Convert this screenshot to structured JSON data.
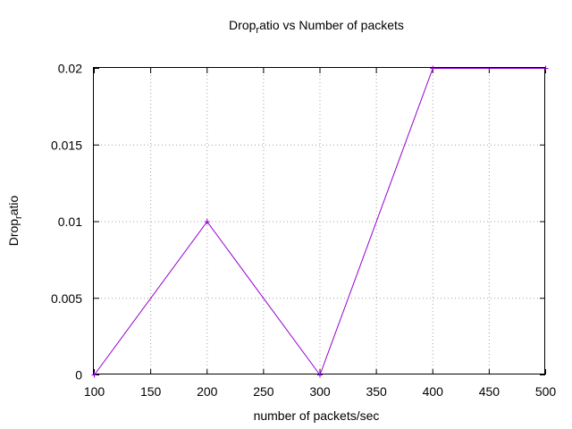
{
  "chart_data": {
    "type": "line",
    "title_main": "Drop",
    "title_sub": "r",
    "title_rest": "atio vs Number of packets",
    "xlabel": "number of packets/sec",
    "ylabel_main": "Drop",
    "ylabel_sub": "r",
    "ylabel_rest": "atio",
    "xlim": [
      100,
      500
    ],
    "ylim": [
      0,
      0.02
    ],
    "xticks": [
      100,
      150,
      200,
      250,
      300,
      350,
      400,
      450,
      500
    ],
    "yticks": [
      0,
      0.005,
      0.01,
      0.015,
      0.02
    ],
    "xtick_labels": [
      "100",
      "150",
      "200",
      "250",
      "300",
      "350",
      "400",
      "450",
      "500"
    ],
    "ytick_labels": [
      "0",
      "0.005",
      "0.01",
      "0.015",
      "0.02"
    ],
    "grid": true,
    "legend": "none",
    "series": [
      {
        "color": "#9400d3",
        "marker": "plus",
        "x": [
          100,
          200,
          300,
          400,
          500
        ],
        "y": [
          0,
          0.01,
          0,
          0.02,
          0.02
        ]
      }
    ]
  }
}
